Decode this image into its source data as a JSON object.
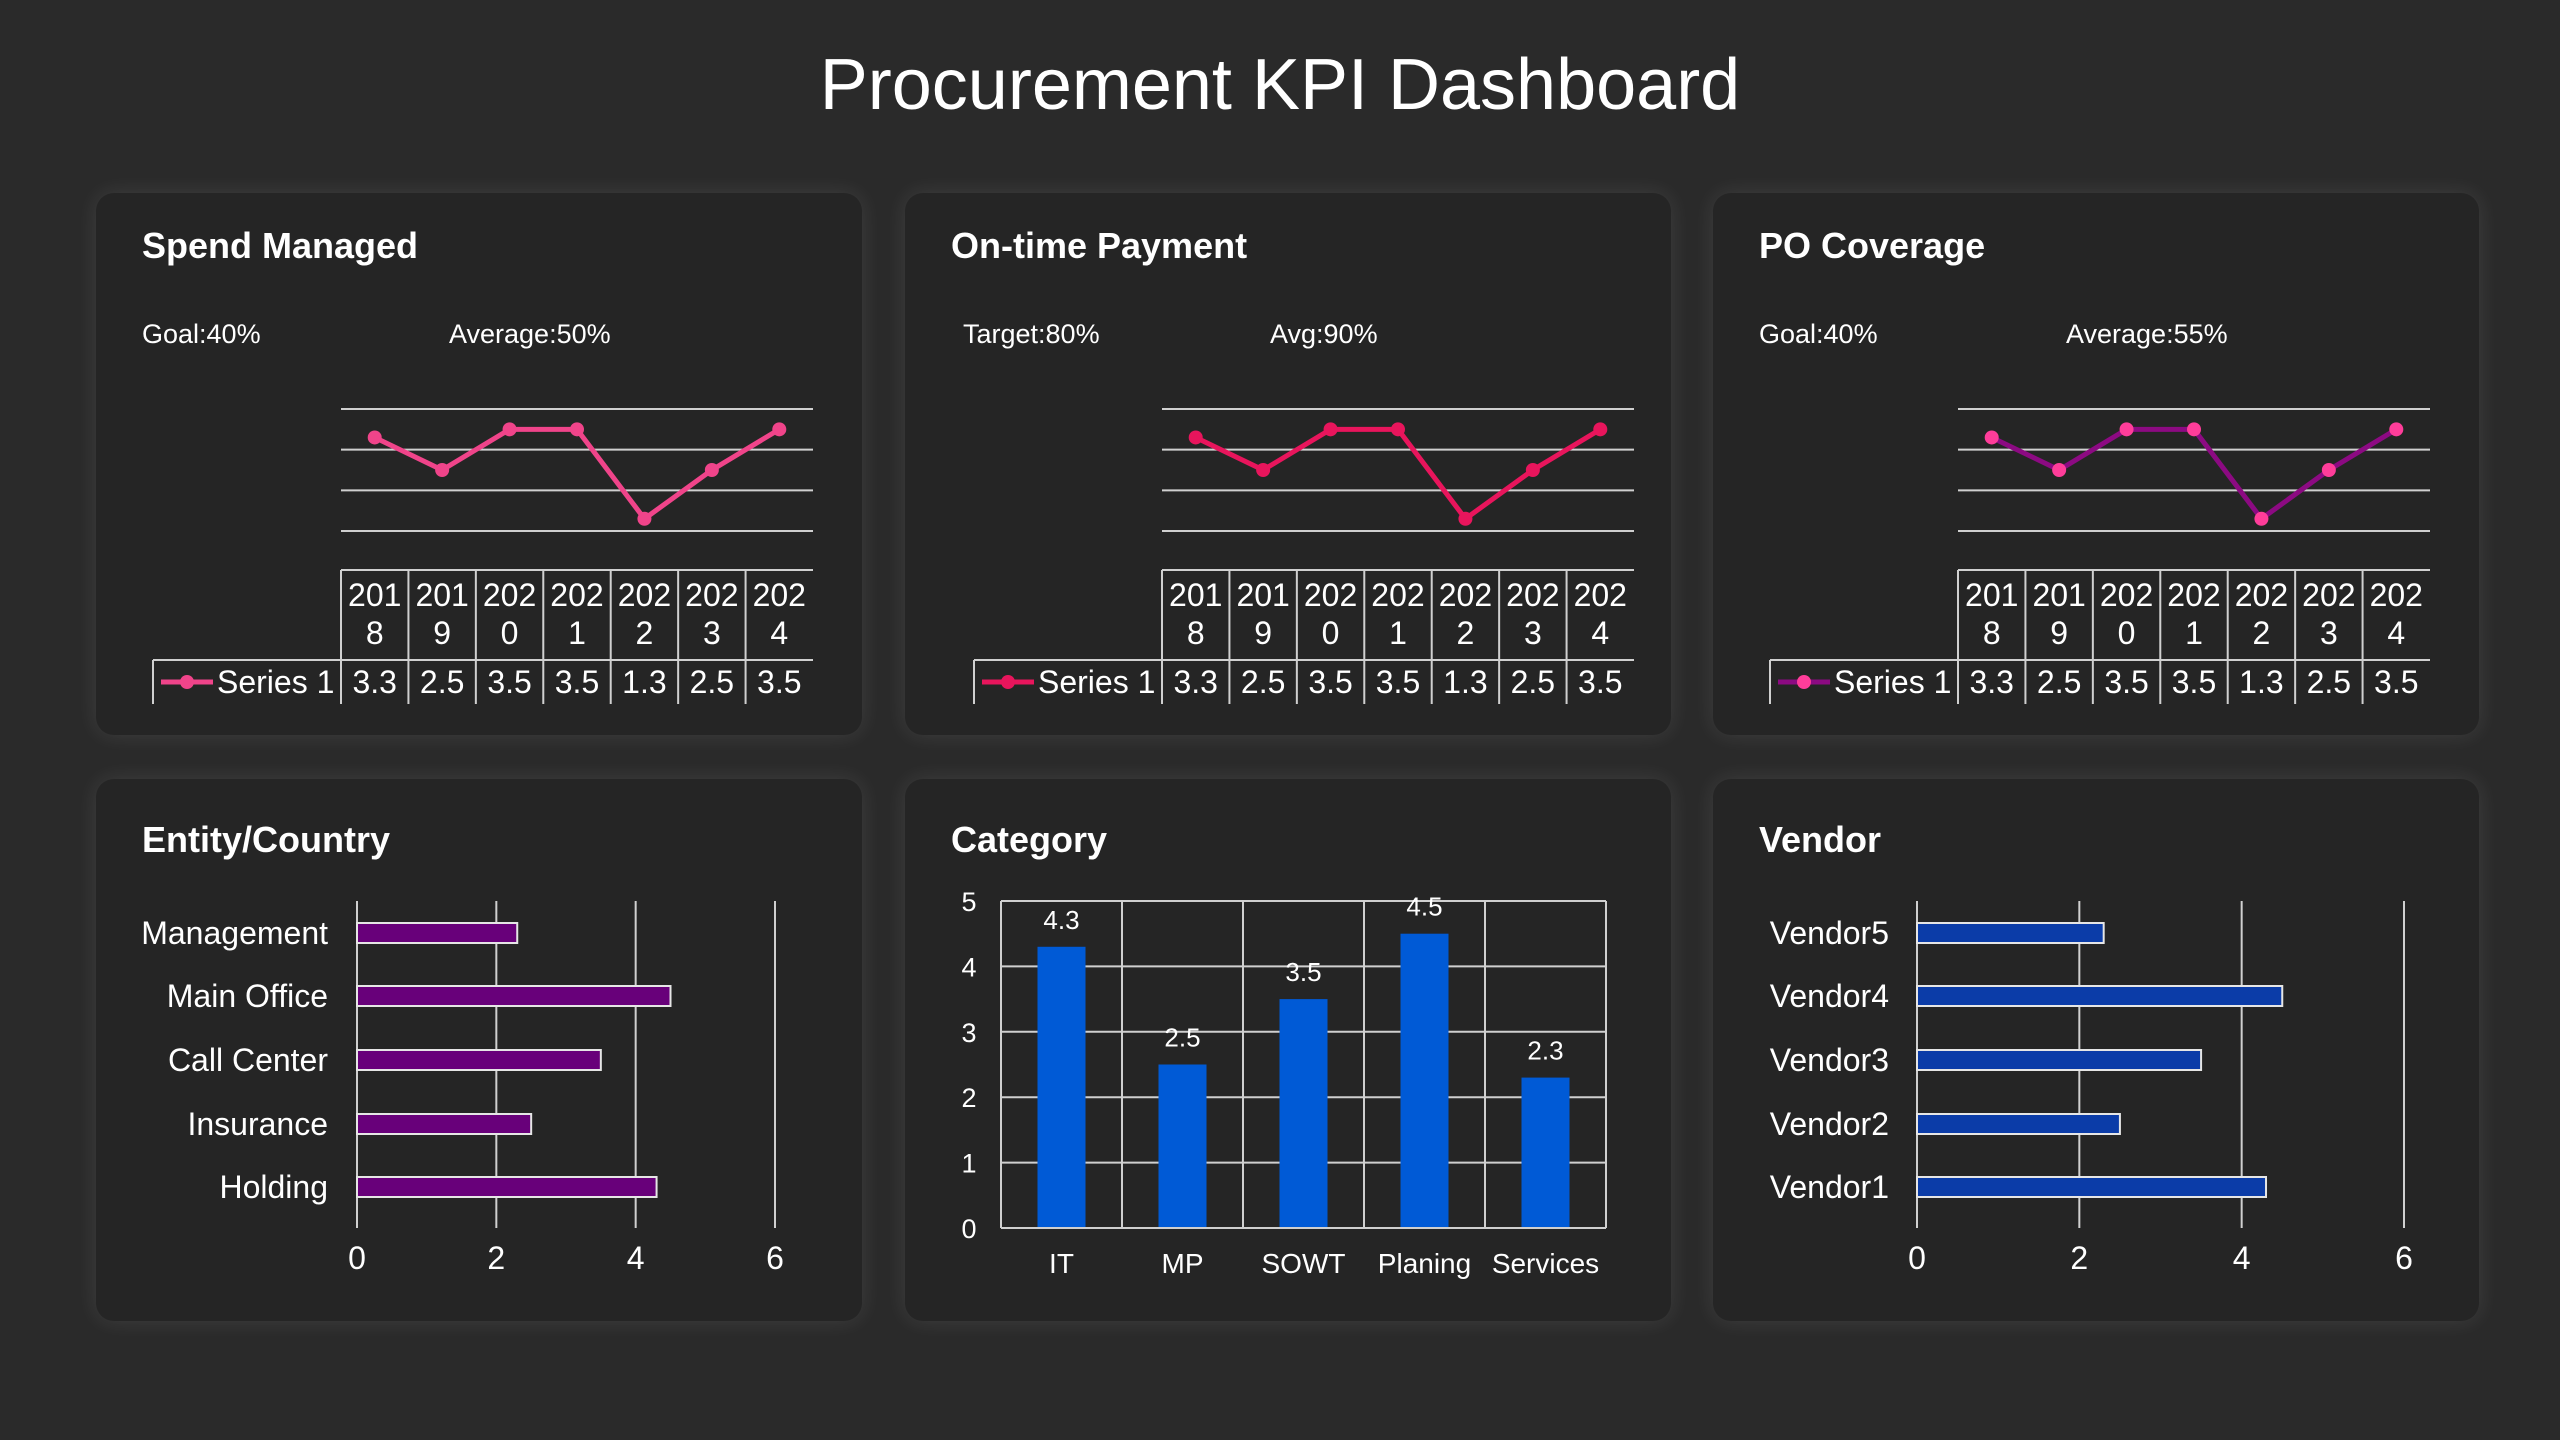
{
  "title": "Procurement KPI Dashboard",
  "cards": {
    "spend": {
      "goal": "Goal:40%",
      "average": "Average:50%"
    },
    "ontime": {
      "goal": "Target:80%",
      "average": "Avg:90%"
    },
    "po": {
      "goal": "Goal:40%",
      "average": "Average:55%"
    }
  },
  "chart_data": [
    {
      "id": "spend",
      "type": "line",
      "title": "Spend Managed",
      "categories": [
        "2018",
        "2019",
        "2020",
        "2021",
        "2022",
        "2023",
        "2024"
      ],
      "series": [
        {
          "name": "Series 1",
          "values": [
            3.3,
            2.5,
            3.5,
            3.5,
            1.3,
            2.5,
            3.5
          ]
        }
      ],
      "ylim": [
        1,
        4
      ],
      "grid": true,
      "data_table": true,
      "line_color": "#f0448a",
      "marker_color": "#f0448a"
    },
    {
      "id": "ontime",
      "type": "line",
      "title": "On-time Payment",
      "categories": [
        "2018",
        "2019",
        "2020",
        "2021",
        "2022",
        "2023",
        "2024"
      ],
      "series": [
        {
          "name": "Series 1",
          "values": [
            3.3,
            2.5,
            3.5,
            3.5,
            1.3,
            2.5,
            3.5
          ]
        }
      ],
      "ylim": [
        1,
        4
      ],
      "grid": true,
      "data_table": true,
      "line_color": "#e8155c",
      "marker_color": "#e8155c"
    },
    {
      "id": "po",
      "type": "line",
      "title": "PO Coverage",
      "categories": [
        "2018",
        "2019",
        "2020",
        "2021",
        "2022",
        "2023",
        "2024"
      ],
      "series": [
        {
          "name": "Series 1",
          "values": [
            3.3,
            2.5,
            3.5,
            3.5,
            1.3,
            2.5,
            3.5
          ]
        }
      ],
      "ylim": [
        1,
        4
      ],
      "grid": true,
      "data_table": true,
      "line_color": "#8c0a82",
      "marker_color": "#ff3d9a"
    },
    {
      "id": "entity",
      "type": "bar",
      "orientation": "horizontal",
      "title": "Entity/Country",
      "categories": [
        "Management",
        "Main Office",
        "Call Center",
        "Insurance",
        "Holding"
      ],
      "values": [
        2.3,
        4.5,
        3.5,
        2.5,
        4.3
      ],
      "xlim": [
        0,
        6
      ],
      "ticks": [
        "0",
        "2",
        "4",
        "6"
      ],
      "grid": true,
      "bar_color": "#68007a"
    },
    {
      "id": "category",
      "type": "bar",
      "orientation": "vertical",
      "title": "Category",
      "categories": [
        "IT",
        "MP",
        "SOWT",
        "Planing",
        "Services"
      ],
      "values": [
        4.3,
        2.5,
        3.5,
        4.5,
        2.3
      ],
      "ylim": [
        0,
        5
      ],
      "ticks": [
        "0",
        "1",
        "2",
        "3",
        "4",
        "5"
      ],
      "data_labels": [
        "4.3",
        "2.5",
        "3.5",
        "4.5",
        "2.3"
      ],
      "grid": true,
      "bar_color": "#005ad6"
    },
    {
      "id": "vendor",
      "type": "bar",
      "orientation": "horizontal",
      "title": "Vendor",
      "categories": [
        "Vendor5",
        "Vendor4",
        "Vendor3",
        "Vendor2",
        "Vendor1"
      ],
      "values": [
        2.3,
        4.5,
        3.5,
        2.5,
        4.3
      ],
      "xlim": [
        0,
        6
      ],
      "ticks": [
        "0",
        "2",
        "4",
        "6"
      ],
      "grid": true,
      "bar_color": "#0b3ca8"
    }
  ]
}
